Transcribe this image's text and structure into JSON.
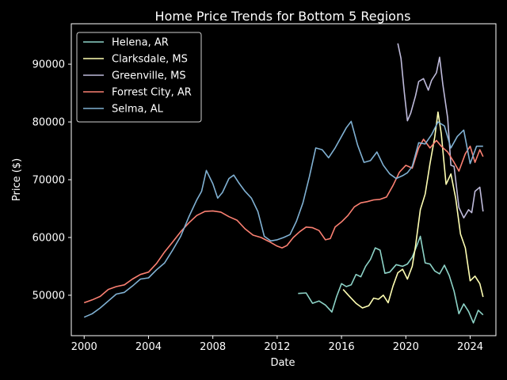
{
  "chart_data": {
    "type": "line",
    "title": "Home Price Trends for Bottom 5 Regions",
    "xlabel": "Date",
    "ylabel": "Price ($)",
    "xlim": [
      1999.2,
      2025.6
    ],
    "ylim": [
      43000,
      97000
    ],
    "xticks": [
      2000,
      2004,
      2008,
      2012,
      2016,
      2020,
      2024
    ],
    "yticks": [
      50000,
      60000,
      70000,
      80000,
      90000
    ],
    "ytick_labels": [
      "50000",
      "60000",
      "70000",
      "80000",
      "90000"
    ],
    "grid": false,
    "legend_position": "top-left",
    "series": [
      {
        "name": "Helena, AR",
        "color": "#8dd3c7",
        "x": [
          2013.3,
          2013.8,
          2014.2,
          2014.6,
          2015.0,
          2015.4,
          2015.7,
          2016.0,
          2016.3,
          2016.6,
          2016.9,
          2017.2,
          2017.5,
          2017.8,
          2018.1,
          2018.4,
          2018.7,
          2019.0,
          2019.4,
          2019.8,
          2020.1,
          2020.4,
          2020.7,
          2020.9,
          2021.2,
          2021.5,
          2021.8,
          2022.1,
          2022.4,
          2022.7,
          2023.0,
          2023.3,
          2023.6,
          2023.9,
          2024.2,
          2024.5,
          2024.8
        ],
        "y": [
          50300,
          50400,
          48600,
          49000,
          48300,
          47100,
          49800,
          52000,
          51500,
          51800,
          53600,
          53200,
          55000,
          56200,
          58200,
          57800,
          53800,
          54000,
          55300,
          55000,
          55400,
          56600,
          58700,
          60200,
          55600,
          55400,
          54200,
          53700,
          55200,
          53400,
          50700,
          46800,
          48500,
          47200,
          45200,
          47400,
          46600
        ]
      },
      {
        "name": "Clarksdale, MS",
        "color": "#ffffb3",
        "x": [
          2016.1,
          2016.5,
          2016.9,
          2017.3,
          2017.7,
          2018.0,
          2018.3,
          2018.6,
          2018.9,
          2019.2,
          2019.5,
          2019.8,
          2020.1,
          2020.4,
          2020.6,
          2020.9,
          2021.2,
          2021.5,
          2021.8,
          2022.0,
          2022.2,
          2022.5,
          2022.8,
          2023.1,
          2023.4,
          2023.7,
          2024.0,
          2024.3,
          2024.6,
          2024.8
        ],
        "y": [
          51000,
          49800,
          48600,
          47800,
          48200,
          49500,
          49300,
          50000,
          48700,
          51600,
          53900,
          54500,
          52800,
          55000,
          58500,
          64800,
          67500,
          72800,
          77400,
          81700,
          78000,
          69200,
          71000,
          66800,
          60600,
          58200,
          52500,
          53300,
          52000,
          49700
        ]
      },
      {
        "name": "Greenville, MS",
        "color": "#bebada",
        "x": [
          2019.5,
          2019.7,
          2019.9,
          2020.1,
          2020.3,
          2020.6,
          2020.8,
          2021.1,
          2021.4,
          2021.6,
          2021.9,
          2022.1,
          2022.3,
          2022.6,
          2022.8,
          2023.0,
          2023.3,
          2023.6,
          2023.9,
          2024.1,
          2024.3,
          2024.6,
          2024.8
        ],
        "y": [
          93600,
          91000,
          85200,
          80200,
          81500,
          84500,
          87000,
          87500,
          85500,
          87200,
          88500,
          91200,
          86500,
          80700,
          72500,
          72300,
          65200,
          63400,
          64800,
          64300,
          68000,
          68700,
          64500
        ]
      },
      {
        "name": "Forrest City, AR",
        "color": "#fb8072",
        "x": [
          2000.0,
          2000.5,
          2001.0,
          2001.5,
          2002.0,
          2002.5,
          2003.0,
          2003.5,
          2004.0,
          2004.5,
          2005.0,
          2005.5,
          2006.0,
          2006.5,
          2007.0,
          2007.5,
          2008.0,
          2008.5,
          2009.0,
          2009.5,
          2010.0,
          2010.5,
          2011.0,
          2011.5,
          2012.0,
          2012.3,
          2012.6,
          2013.0,
          2013.4,
          2013.8,
          2014.2,
          2014.6,
          2015.0,
          2015.3,
          2015.6,
          2016.0,
          2016.4,
          2016.8,
          2017.2,
          2017.6,
          2018.0,
          2018.4,
          2018.8,
          2019.2,
          2019.6,
          2020.0,
          2020.4,
          2020.8,
          2021.1,
          2021.5,
          2021.9,
          2022.2,
          2022.6,
          2023.0,
          2023.3,
          2023.7,
          2024.0,
          2024.3,
          2024.6,
          2024.8
        ],
        "y": [
          48700,
          49200,
          49800,
          51000,
          51500,
          51800,
          52800,
          53600,
          54000,
          55500,
          57500,
          59200,
          61000,
          62500,
          63800,
          64500,
          64600,
          64400,
          63600,
          63000,
          61500,
          60400,
          60000,
          59300,
          58500,
          58200,
          58600,
          60000,
          61000,
          61800,
          61700,
          61200,
          59600,
          59800,
          61800,
          62700,
          63800,
          65300,
          66000,
          66200,
          66500,
          66600,
          67000,
          69000,
          71300,
          72500,
          72000,
          75500,
          77000,
          75500,
          76800,
          75800,
          74800,
          73000,
          71500,
          74500,
          75800,
          73000,
          75200,
          74000
        ]
      },
      {
        "name": "Selma, AL",
        "color": "#80b1d3",
        "x": [
          2000.0,
          2000.5,
          2001.0,
          2001.5,
          2002.0,
          2002.5,
          2003.0,
          2003.5,
          2004.0,
          2004.5,
          2005.0,
          2005.5,
          2006.0,
          2006.5,
          2007.0,
          2007.3,
          2007.6,
          2008.0,
          2008.3,
          2008.6,
          2009.0,
          2009.3,
          2009.6,
          2010.0,
          2010.4,
          2010.8,
          2011.2,
          2011.6,
          2012.0,
          2012.4,
          2012.8,
          2013.2,
          2013.6,
          2014.0,
          2014.4,
          2014.8,
          2015.2,
          2015.6,
          2016.0,
          2016.3,
          2016.6,
          2017.0,
          2017.4,
          2017.8,
          2018.2,
          2018.6,
          2019.0,
          2019.4,
          2019.8,
          2020.1,
          2020.4,
          2020.8,
          2021.2,
          2021.6,
          2022.0,
          2022.4,
          2022.8,
          2023.2,
          2023.6,
          2024.0,
          2024.4,
          2024.8
        ],
        "y": [
          46200,
          46800,
          47800,
          49000,
          50200,
          50500,
          51600,
          52800,
          53000,
          54400,
          55600,
          57800,
          60200,
          63500,
          66500,
          68000,
          71600,
          69300,
          66800,
          67800,
          70200,
          70800,
          69500,
          68000,
          66800,
          64500,
          60200,
          59400,
          59600,
          60000,
          60500,
          62800,
          66000,
          70500,
          75500,
          75200,
          73800,
          75500,
          77500,
          79000,
          80100,
          76000,
          73000,
          73300,
          74800,
          72500,
          71000,
          70200,
          70700,
          71200,
          72300,
          76400,
          76200,
          77800,
          80000,
          79300,
          75500,
          77500,
          78600,
          72800,
          75800,
          75800
        ]
      }
    ]
  }
}
